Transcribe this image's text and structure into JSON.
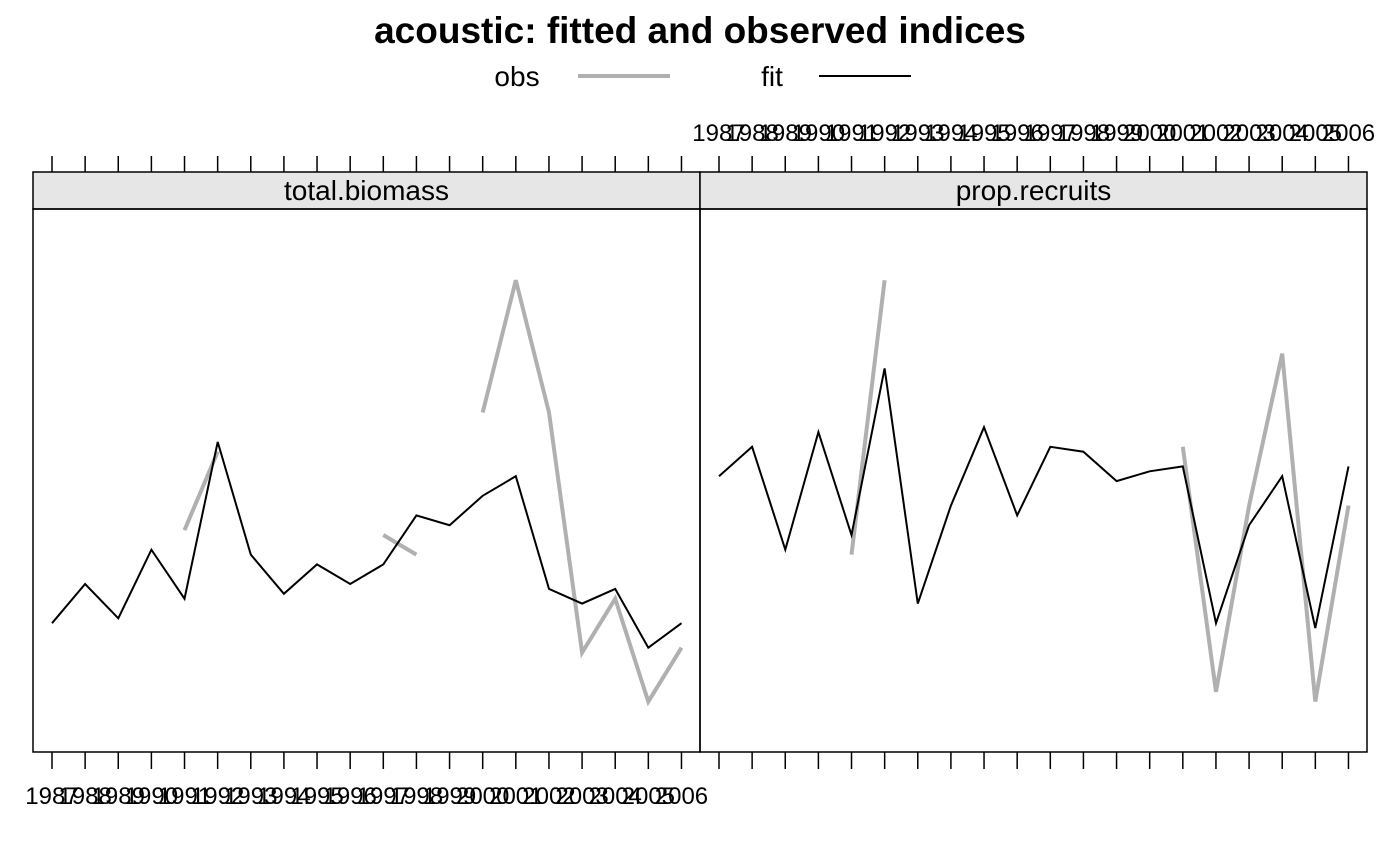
{
  "chart_data": {
    "type": "line",
    "title": "acoustic: fitted and observed indices",
    "legend": {
      "placement": "top",
      "entries": [
        {
          "label": "obs",
          "color": "#b0b0b0"
        },
        {
          "label": "fit",
          "color": "#000000"
        }
      ]
    },
    "x": [
      1987,
      1988,
      1989,
      1990,
      1991,
      1992,
      1993,
      1994,
      1995,
      1996,
      1997,
      1998,
      1999,
      2000,
      2001,
      2002,
      2003,
      2004,
      2005,
      2006
    ],
    "panels": [
      {
        "strip": "total.biomass",
        "series": [
          {
            "name": "obs",
            "color": "#b0b0b0",
            "values": [
              null,
              null,
              null,
              null,
              0.41,
              0.57,
              null,
              null,
              null,
              null,
              0.4,
              0.36,
              null,
              0.65,
              0.92,
              0.65,
              0.16,
              0.27,
              0.06,
              0.17
            ]
          },
          {
            "name": "fit",
            "color": "#000000",
            "values": [
              0.22,
              0.3,
              0.23,
              0.37,
              0.27,
              0.59,
              0.36,
              0.28,
              0.34,
              0.3,
              0.34,
              0.44,
              0.42,
              0.48,
              0.52,
              0.29,
              0.26,
              0.29,
              0.17,
              0.22
            ]
          }
        ]
      },
      {
        "strip": "prop.recruits",
        "series": [
          {
            "name": "obs",
            "color": "#b0b0b0",
            "values": [
              null,
              null,
              null,
              null,
              0.36,
              0.92,
              null,
              null,
              null,
              null,
              null,
              null,
              null,
              null,
              0.58,
              0.08,
              0.46,
              0.77,
              0.06,
              0.46
            ]
          },
          {
            "name": "fit",
            "color": "#000000",
            "values": [
              0.52,
              0.58,
              0.37,
              0.61,
              0.4,
              0.74,
              0.26,
              0.46,
              0.62,
              0.44,
              0.58,
              0.57,
              0.51,
              0.53,
              0.54,
              0.22,
              0.42,
              0.52,
              0.21,
              0.54
            ]
          }
        ]
      }
    ],
    "ylim": [
      0,
      1
    ],
    "grid": false
  }
}
